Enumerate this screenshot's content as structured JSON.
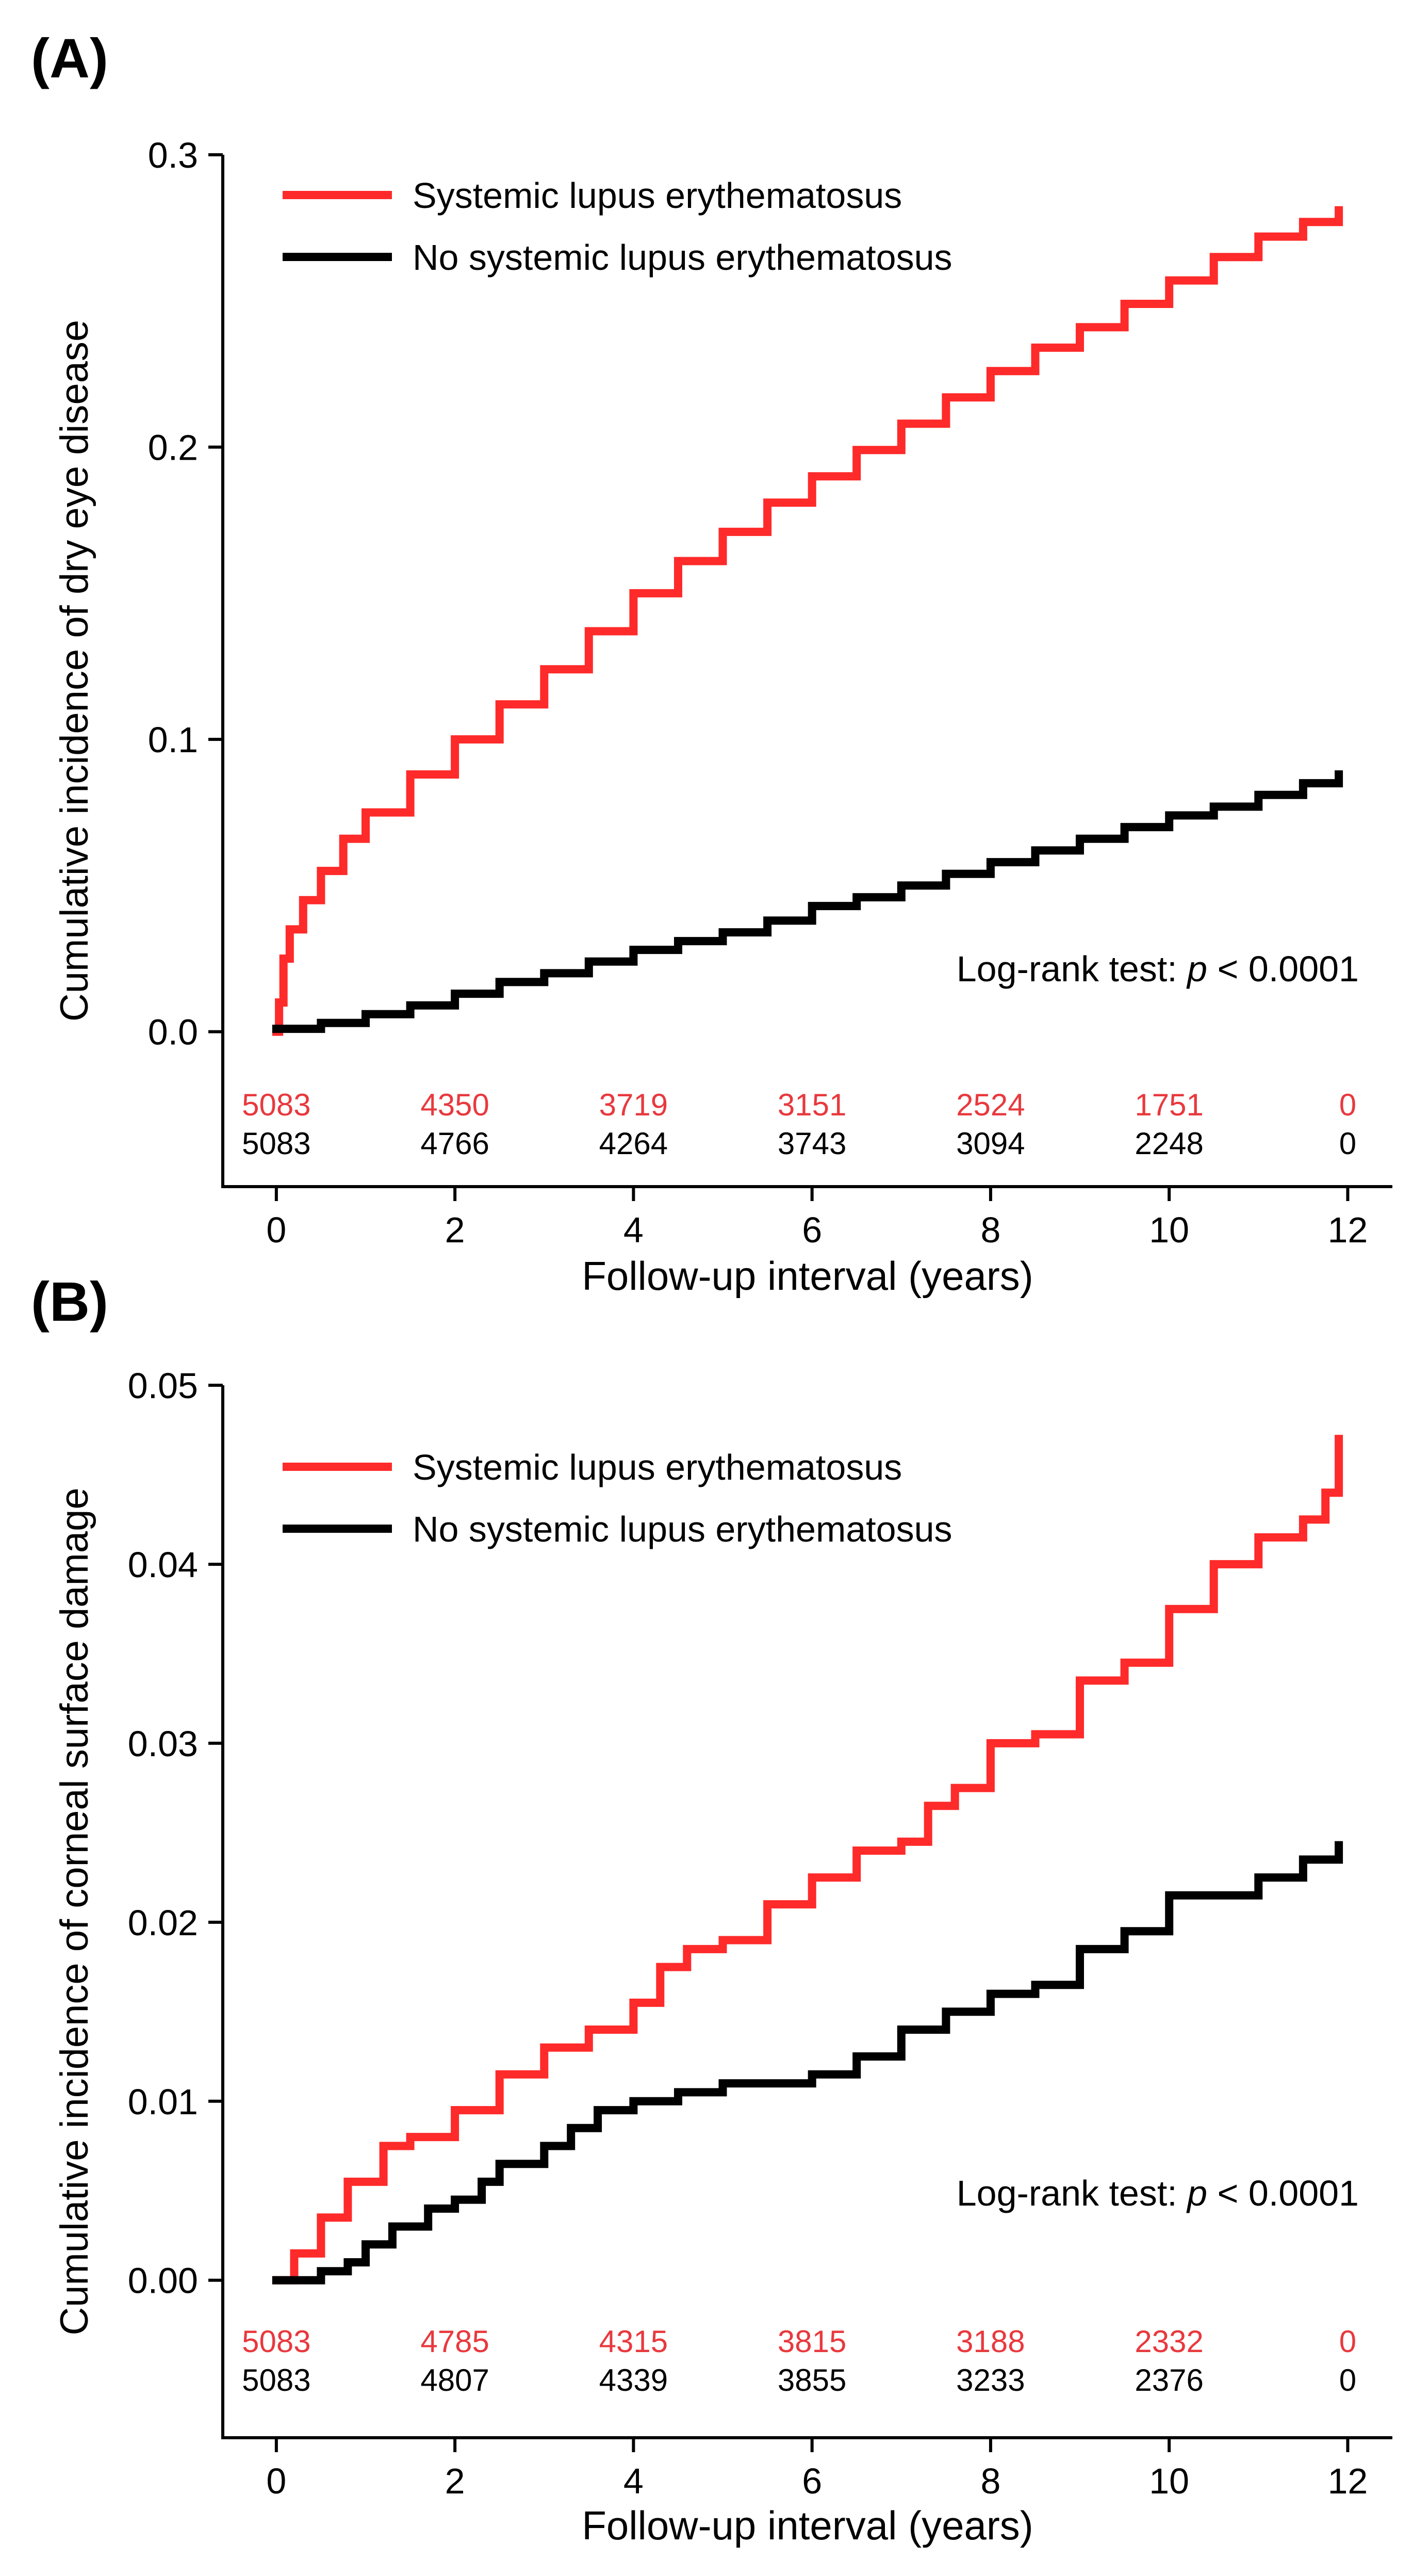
{
  "panels": [
    {
      "panel_label": "(A)",
      "logrank_prefix": "Log-rank test: ",
      "logrank_p": "p",
      "logrank_suffix": " < 0.0001"
    },
    {
      "panel_label": "(B)",
      "logrank_prefix": "Log-rank test: ",
      "logrank_p": "p",
      "logrank_suffix": " < 0.0001"
    }
  ],
  "chart_data": [
    {
      "type": "line",
      "title": "(A)",
      "xlabel": "Follow-up interval (years)",
      "ylabel": "Cumulative incidence of dry eye disease",
      "xlim": [
        -0.6,
        12.5
      ],
      "ylim": [
        -0.053,
        0.3
      ],
      "xticks": [
        0,
        2,
        4,
        6,
        8,
        10,
        12
      ],
      "yticks": [
        0.0,
        0.1,
        0.2,
        0.3
      ],
      "ytick_labels": [
        "0.0",
        "0.1",
        "0.2",
        "0.3"
      ],
      "legend_position": "top-left",
      "colors": {
        "sle": "#ff2a2a",
        "no_sle": "#000000",
        "at_risk_sle": "#e8393e"
      },
      "series": [
        {
          "name": "Systemic lupus erythematosus",
          "color": "#ff2a2a",
          "x": [
            0,
            0.03,
            0.08,
            0.15,
            0.3,
            0.5,
            0.75,
            1.0,
            1.5,
            2.0,
            2.5,
            3.0,
            3.5,
            4.0,
            4.5,
            5.0,
            5.5,
            6.0,
            6.5,
            7.0,
            7.5,
            8.0,
            8.5,
            9.0,
            9.5,
            10.0,
            10.5,
            11.0,
            11.5,
            11.9
          ],
          "y": [
            0.0,
            0.01,
            0.025,
            0.035,
            0.045,
            0.055,
            0.066,
            0.075,
            0.088,
            0.1,
            0.112,
            0.124,
            0.137,
            0.15,
            0.161,
            0.171,
            0.181,
            0.19,
            0.199,
            0.208,
            0.217,
            0.226,
            0.234,
            0.241,
            0.249,
            0.257,
            0.265,
            0.272,
            0.277,
            0.281
          ]
        },
        {
          "name": "No systemic lupus erythematosus",
          "color": "#000000",
          "x": [
            0,
            0.5,
            1.0,
            1.5,
            2.0,
            2.5,
            3.0,
            3.5,
            4.0,
            4.5,
            5.0,
            5.5,
            6.0,
            6.5,
            7.0,
            7.5,
            8.0,
            8.5,
            9.0,
            9.5,
            10.0,
            10.5,
            11.0,
            11.5,
            11.9
          ],
          "y": [
            0.001,
            0.003,
            0.006,
            0.009,
            0.013,
            0.017,
            0.02,
            0.024,
            0.028,
            0.031,
            0.034,
            0.038,
            0.043,
            0.046,
            0.05,
            0.054,
            0.058,
            0.062,
            0.066,
            0.07,
            0.074,
            0.077,
            0.081,
            0.085,
            0.088
          ]
        }
      ],
      "at_risk": {
        "x": [
          0,
          2,
          4,
          6,
          8,
          10,
          12
        ],
        "rows": [
          {
            "series": "Systemic lupus erythematosus",
            "color": "#e8393e",
            "values": [
              "5083",
              "4350",
              "3719",
              "3151",
              "2524",
              "1751",
              "0"
            ]
          },
          {
            "series": "No systemic lupus erythematosus",
            "color": "#000000",
            "values": [
              "5083",
              "4766",
              "4264",
              "3743",
              "3094",
              "2248",
              "0"
            ]
          }
        ]
      },
      "annotation": "Log-rank test: p < 0.0001"
    },
    {
      "type": "line",
      "title": "(B)",
      "xlabel": "Follow-up interval (years)",
      "ylabel": "Cumulative incidence of corneal surface damage",
      "xlim": [
        -0.6,
        12.5
      ],
      "ylim": [
        -0.0088,
        0.05
      ],
      "xticks": [
        0,
        2,
        4,
        6,
        8,
        10,
        12
      ],
      "yticks": [
        0.0,
        0.01,
        0.02,
        0.03,
        0.04,
        0.05
      ],
      "ytick_labels": [
        "0.00",
        "0.01",
        "0.02",
        "0.03",
        "0.04",
        "0.05"
      ],
      "legend_position": "top-left",
      "colors": {
        "sle": "#ff2a2a",
        "no_sle": "#000000",
        "at_risk_sle": "#e8393e"
      },
      "series": [
        {
          "name": "Systemic lupus erythematosus",
          "color": "#ff2a2a",
          "x": [
            0,
            0.2,
            0.5,
            0.8,
            1.2,
            1.5,
            2.0,
            2.5,
            3.0,
            3.5,
            4.0,
            4.3,
            4.6,
            5.0,
            5.5,
            6.0,
            6.5,
            7.0,
            7.3,
            7.6,
            8.0,
            8.5,
            9.0,
            9.5,
            10.0,
            10.5,
            11.0,
            11.5,
            11.75,
            11.9
          ],
          "y": [
            0.0,
            0.0015,
            0.0035,
            0.0055,
            0.0075,
            0.008,
            0.0095,
            0.0115,
            0.013,
            0.014,
            0.0155,
            0.0175,
            0.0185,
            0.019,
            0.021,
            0.0225,
            0.024,
            0.0245,
            0.0265,
            0.0275,
            0.03,
            0.0305,
            0.0335,
            0.0345,
            0.0375,
            0.04,
            0.0415,
            0.0425,
            0.044,
            0.047
          ]
        },
        {
          "name": "No systemic lupus erythematosus",
          "color": "#000000",
          "x": [
            0,
            0.5,
            0.8,
            1.0,
            1.3,
            1.7,
            2.0,
            2.3,
            2.5,
            3.0,
            3.3,
            3.6,
            4.0,
            4.5,
            5.0,
            5.5,
            6.0,
            6.5,
            7.0,
            7.5,
            8.0,
            8.5,
            9.0,
            9.5,
            10.0,
            10.5,
            11.0,
            11.5,
            11.9
          ],
          "y": [
            0.0,
            0.0005,
            0.001,
            0.002,
            0.003,
            0.004,
            0.0045,
            0.0055,
            0.0065,
            0.0075,
            0.0085,
            0.0095,
            0.01,
            0.0105,
            0.011,
            0.011,
            0.0115,
            0.0125,
            0.014,
            0.015,
            0.016,
            0.0165,
            0.0185,
            0.0195,
            0.0215,
            0.0215,
            0.0225,
            0.0235,
            0.0243
          ]
        }
      ],
      "at_risk": {
        "x": [
          0,
          2,
          4,
          6,
          8,
          10,
          12
        ],
        "rows": [
          {
            "series": "Systemic lupus erythematosus",
            "color": "#e8393e",
            "values": [
              "5083",
              "4785",
              "4315",
              "3815",
              "3188",
              "2332",
              "0"
            ]
          },
          {
            "series": "No systemic lupus erythematosus",
            "color": "#000000",
            "values": [
              "5083",
              "4807",
              "4339",
              "3855",
              "3233",
              "2376",
              "0"
            ]
          }
        ]
      },
      "annotation": "Log-rank test: p < 0.0001"
    }
  ]
}
